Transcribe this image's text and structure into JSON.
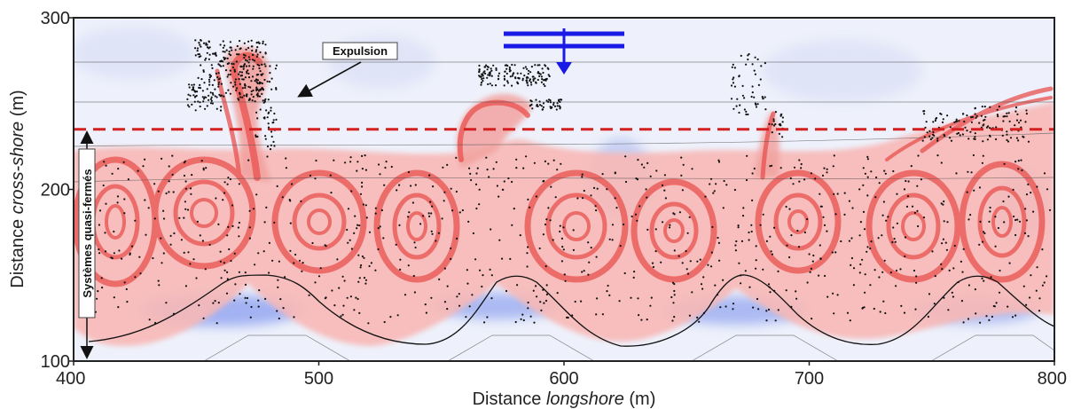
{
  "figure": {
    "annotations": {
      "expulsion": "Expulsion",
      "systems": "Systèmes quasi-fermés"
    },
    "colors": {
      "rip_current_line": "#d42020",
      "water_level_marker": "#1a1ae6",
      "vorticity_positive": "#e8504e",
      "vorticity_negative": "#3a5bdc",
      "particles": "#111111"
    }
  },
  "chart_data": {
    "type": "field-plot",
    "xlabel_prefix": "Distance ",
    "xlabel_italic": "longshore",
    "xlabel_suffix": " (m)",
    "ylabel_prefix": "Distance ",
    "ylabel_italic": "cross-shore",
    "ylabel_suffix": " (m)",
    "xlim": [
      400,
      800
    ],
    "ylim": [
      100,
      300
    ],
    "xticks": [
      "400",
      "500",
      "600",
      "700",
      "800"
    ],
    "yticks": [
      "100",
      "200",
      "300"
    ],
    "dashed_line_y": 235,
    "horizontal_lines_y": [
      274,
      252
    ],
    "water_level_marker_x": 600,
    "water_level_marker_y": 290
  }
}
